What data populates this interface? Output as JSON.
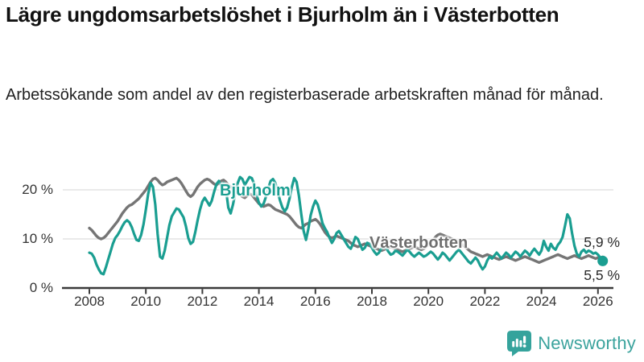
{
  "header": {
    "title": "Lägre ungdomsarbetslöshet i Bjurholm än i Västerbotten",
    "subtitle": "Arbetssökande som andel av den registerbaserade arbetskraften månad för månad."
  },
  "chart_data": {
    "type": "line",
    "title": "Lägre ungdomsarbetslöshet i Bjurholm än i Västerbotten",
    "xlabel": "",
    "ylabel": "",
    "unit": "%",
    "x_start": 2008,
    "points_per_year": 12,
    "xlim": [
      2007.1,
      2026.6
    ],
    "ylim": [
      0,
      24
    ],
    "grid": "horizontal",
    "legend_position": "inline-labels",
    "grid_color": "#dedede",
    "axis_color": "#3a3a3a",
    "x_ticks": [
      2008,
      2010,
      2012,
      2014,
      2016,
      2018,
      2020,
      2022,
      2024,
      2026
    ],
    "y_ticks": [
      {
        "value": 20,
        "label": "20 %"
      },
      {
        "value": 10,
        "label": "10 %"
      },
      {
        "value": 0,
        "label": "0 %"
      }
    ],
    "series": [
      {
        "name": "Västerbotten",
        "color": "#757575",
        "width": 3.4,
        "dot_radius": 4.2,
        "end_label": "5,9 %",
        "end_value": 5.9,
        "values": [
          12.2,
          11.8,
          11.2,
          10.6,
          10.2,
          10.0,
          10.2,
          10.6,
          11.2,
          11.8,
          12.4,
          13.0,
          13.6,
          14.4,
          15.2,
          15.8,
          16.4,
          16.8,
          17.0,
          17.4,
          17.8,
          18.2,
          18.8,
          19.4,
          20.0,
          20.8,
          21.6,
          22.2,
          22.4,
          22.0,
          21.4,
          21.0,
          21.2,
          21.6,
          21.8,
          22.0,
          22.2,
          22.4,
          22.0,
          21.4,
          20.6,
          19.8,
          19.0,
          18.6,
          19.0,
          19.8,
          20.6,
          21.2,
          21.6,
          22.0,
          22.2,
          22.0,
          21.6,
          21.2,
          21.0,
          21.4,
          21.8,
          22.0,
          21.6,
          21.0,
          20.6,
          20.2,
          19.8,
          19.4,
          19.0,
          18.6,
          18.4,
          18.8,
          19.2,
          19.0,
          18.4,
          17.8,
          17.2,
          16.8,
          16.6,
          16.8,
          17.0,
          16.8,
          16.4,
          16.0,
          15.8,
          15.6,
          15.4,
          15.2,
          15.0,
          14.6,
          14.0,
          13.4,
          12.8,
          12.4,
          12.2,
          12.6,
          13.0,
          13.2,
          13.6,
          13.8,
          14.0,
          13.6,
          13.0,
          12.2,
          11.4,
          10.8,
          10.4,
          10.2,
          10.4,
          10.6,
          10.4,
          10.2,
          10.0,
          9.8,
          9.6,
          9.2,
          8.8,
          8.6,
          8.4,
          8.6,
          8.8,
          9.0,
          8.8,
          8.6,
          8.4,
          8.2,
          8.0,
          7.8,
          7.6,
          7.8,
          8.0,
          8.2,
          8.4,
          8.2,
          8.0,
          7.8,
          7.6,
          7.4,
          7.6,
          7.8,
          8.0,
          8.2,
          8.4,
          8.2,
          8.0,
          7.8,
          8.0,
          8.4,
          8.8,
          9.2,
          9.8,
          10.4,
          10.8,
          11.0,
          10.8,
          10.6,
          10.4,
          10.2,
          10.0,
          9.8,
          9.6,
          9.4,
          9.0,
          8.6,
          8.2,
          7.8,
          7.4,
          7.2,
          7.0,
          6.8,
          6.6,
          6.4,
          6.6,
          6.8,
          6.6,
          6.4,
          6.2,
          6.0,
          5.8,
          6.0,
          6.2,
          6.4,
          6.2,
          6.0,
          5.8,
          5.6,
          5.8,
          6.0,
          6.2,
          6.4,
          6.2,
          6.0,
          5.8,
          5.6,
          5.4,
          5.2,
          5.4,
          5.6,
          5.8,
          6.0,
          6.2,
          6.4,
          6.6,
          6.8,
          6.6,
          6.4,
          6.2,
          6.0,
          6.2,
          6.4,
          6.6,
          6.4,
          6.2,
          6.0,
          6.2,
          6.4,
          6.6,
          6.4,
          6.2,
          6.0,
          6.2,
          6.0,
          5.9
        ]
      },
      {
        "name": "Bjurholm",
        "color": "#1a9e91",
        "width": 3.2,
        "dot_radius": 6.5,
        "end_label": "5,5 %",
        "end_value": 5.5,
        "values": [
          7.2,
          7.0,
          6.2,
          4.8,
          3.8,
          3.0,
          2.8,
          4.2,
          5.8,
          7.4,
          9.0,
          10.2,
          10.8,
          11.6,
          12.6,
          13.4,
          13.8,
          13.4,
          12.4,
          11.0,
          9.8,
          9.6,
          10.8,
          13.0,
          16.0,
          19.2,
          21.4,
          20.6,
          17.0,
          11.0,
          6.4,
          6.0,
          7.6,
          10.2,
          12.8,
          14.6,
          15.4,
          16.2,
          16.0,
          15.2,
          14.4,
          12.6,
          10.2,
          9.0,
          9.4,
          11.4,
          13.8,
          16.0,
          17.6,
          18.4,
          17.6,
          16.8,
          17.8,
          19.6,
          21.2,
          21.8,
          20.8,
          21.4,
          20.2,
          16.4,
          15.2,
          17.0,
          19.4,
          21.4,
          22.6,
          22.2,
          21.0,
          21.8,
          22.6,
          22.4,
          21.2,
          19.0,
          17.4,
          16.6,
          17.2,
          18.6,
          20.4,
          21.8,
          22.2,
          21.4,
          19.6,
          17.8,
          16.4,
          15.6,
          16.4,
          18.2,
          20.6,
          22.4,
          21.6,
          18.8,
          15.0,
          11.6,
          9.8,
          12.0,
          14.8,
          16.6,
          17.8,
          17.0,
          15.2,
          13.2,
          12.2,
          11.4,
          10.2,
          9.2,
          10.0,
          11.2,
          11.6,
          10.8,
          10.0,
          9.2,
          8.4,
          8.0,
          9.0,
          10.4,
          10.0,
          8.8,
          7.8,
          8.2,
          9.2,
          9.0,
          8.2,
          7.4,
          6.8,
          7.2,
          8.0,
          8.6,
          8.2,
          7.4,
          6.8,
          7.0,
          7.6,
          7.4,
          7.0,
          6.6,
          7.2,
          7.8,
          7.4,
          6.8,
          6.4,
          6.8,
          7.2,
          6.8,
          6.4,
          6.6,
          7.0,
          7.4,
          7.0,
          6.4,
          5.8,
          6.4,
          7.2,
          6.8,
          6.2,
          5.6,
          6.2,
          6.8,
          7.4,
          7.8,
          7.2,
          6.6,
          6.0,
          5.4,
          5.0,
          5.6,
          6.2,
          5.6,
          4.6,
          3.8,
          4.4,
          5.6,
          6.4,
          6.0,
          6.6,
          7.2,
          6.6,
          6.0,
          6.6,
          7.2,
          6.8,
          6.2,
          6.8,
          7.4,
          7.0,
          6.4,
          7.0,
          7.6,
          7.2,
          6.6,
          7.4,
          8.0,
          7.4,
          6.8,
          7.6,
          9.6,
          8.4,
          7.6,
          9.0,
          8.2,
          7.8,
          8.8,
          9.4,
          10.4,
          12.6,
          15.0,
          14.2,
          11.2,
          8.6,
          7.0,
          6.4,
          7.4,
          7.8,
          7.2,
          7.6,
          7.4,
          7.0,
          7.2,
          6.8,
          6.2,
          5.5
        ]
      }
    ]
  },
  "footer": {
    "brand": "Newsworthy",
    "brand_color": "#3ba39d",
    "icon_color": "#35a39c"
  }
}
